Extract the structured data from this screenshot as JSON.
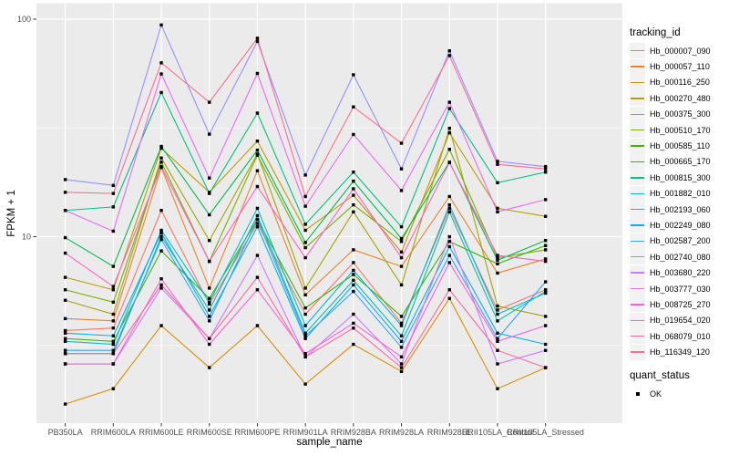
{
  "figure": {
    "background": "#FFFFFF",
    "panel_background": "#EBEBEB",
    "grid_color": "#FFFFFF",
    "axis_text_color": "#4D4D4D",
    "tick_color": "#333333",
    "legend_key_background": "#F2F2F2"
  },
  "chart_data": {
    "type": "line",
    "title": "",
    "xlabel": "sample_name",
    "ylabel": "FPKM + 1",
    "yscale": "log10",
    "ylim": [
      1.38,
      116
    ],
    "yticks": [
      10,
      100
    ],
    "ytick_labels": [
      "10",
      "100"
    ],
    "minor_gridlines": [
      3.162,
      31.62
    ],
    "grid": true,
    "legend_position": "right",
    "legend_title": "tracking_id",
    "legend2_title": "quant_status",
    "legend2_items": [
      "OK"
    ],
    "marker": "square",
    "marker_color": "#000000",
    "categories": [
      "PB350LA",
      "RRIM600LA",
      "RRIM600LE",
      "RRIM600SE",
      "RRIM600PE",
      "RRIM901LA",
      "RRIM928BA",
      "RRIM928LA",
      "RRIM928LE",
      "RRII105LA_Control",
      "RRII105LA_Stressed"
    ],
    "series": [
      {
        "name": "Hb_000007_090",
        "color": "#F8766D",
        "values": [
          3.7,
          3.8,
          13.2,
          4.9,
          11.5,
          4.4,
          7.6,
          4.0,
          13.5,
          4.6,
          5.7
        ]
      },
      {
        "name": "Hb_000057_110",
        "color": "#EA8331",
        "values": [
          4.2,
          4.1,
          20.8,
          5.8,
          20.1,
          5.4,
          8.7,
          7.3,
          15.3,
          6.8,
          7.9
        ]
      },
      {
        "name": "Hb_000116_250",
        "color": "#D89000",
        "values": [
          1.7,
          2.0,
          3.9,
          2.5,
          3.9,
          2.1,
          3.2,
          2.4,
          5.2,
          2.0,
          2.5
        ]
      },
      {
        "name": "Hb_000270_480",
        "color": "#C09B00",
        "values": [
          6.5,
          5.7,
          25.5,
          16.0,
          27.5,
          10.7,
          15.5,
          8.5,
          30.0,
          13.5,
          12.4
        ]
      },
      {
        "name": "Hb_000375_300",
        "color": "#A3A500",
        "values": [
          5.1,
          4.4,
          23.0,
          9.6,
          24.0,
          5.8,
          13.0,
          6.0,
          31.5,
          4.8,
          4.3
        ]
      },
      {
        "name": "Hb_000510_170",
        "color": "#7CAE00",
        "values": [
          5.7,
          5.0,
          22.0,
          7.7,
          23.7,
          8.9,
          14.0,
          9.5,
          25.2,
          8.0,
          8.7
        ]
      },
      {
        "name": "Hb_000585_110",
        "color": "#39B600",
        "values": [
          3.4,
          3.3,
          8.6,
          5.2,
          12.0,
          4.7,
          6.7,
          4.3,
          9.5,
          7.5,
          9.1
        ]
      },
      {
        "name": "Hb_000665_170",
        "color": "#00BB4E",
        "values": [
          9.9,
          7.3,
          26.0,
          12.6,
          25.0,
          9.4,
          18.0,
          9.8,
          22.0,
          7.8,
          9.6
        ]
      },
      {
        "name": "Hb_000815_300",
        "color": "#00C087",
        "values": [
          13.2,
          13.7,
          46.0,
          15.8,
          37.0,
          11.4,
          19.8,
          11.1,
          38.8,
          17.7,
          19.8
        ]
      },
      {
        "name": "Hb_001882_010",
        "color": "#00C0B2",
        "values": [
          2.9,
          2.9,
          10.0,
          4.6,
          12.5,
          3.6,
          6.3,
          3.5,
          13.0,
          4.1,
          5.6
        ]
      },
      {
        "name": "Hb_002193_060",
        "color": "#00BCD8",
        "values": [
          3.3,
          3.2,
          10.7,
          5.0,
          13.5,
          3.9,
          7.0,
          3.9,
          14.0,
          4.4,
          5.5
        ]
      },
      {
        "name": "Hb_002249_080",
        "color": "#00B0F6",
        "values": [
          3.6,
          3.5,
          10.4,
          4.3,
          11.1,
          3.4,
          6.0,
          3.3,
          9.0,
          3.6,
          3.2
        ]
      },
      {
        "name": "Hb_002587_200",
        "color": "#35A2FF",
        "values": [
          3.0,
          3.0,
          9.7,
          4.1,
          12.0,
          3.5,
          5.6,
          3.1,
          8.2,
          3.4,
          6.2
        ]
      },
      {
        "name": "Hb_002740_080",
        "color": "#9590FF",
        "values": [
          18.3,
          17.2,
          94.0,
          29.6,
          79.0,
          19.2,
          55.5,
          20.5,
          71.5,
          22.2,
          21.0
        ]
      },
      {
        "name": "Hb_003680_220",
        "color": "#C77CFF",
        "values": [
          2.6,
          2.6,
          5.8,
          3.4,
          8.2,
          2.8,
          4.4,
          2.6,
          10.0,
          2.6,
          3.0
        ]
      },
      {
        "name": "Hb_003777_030",
        "color": "#E76BF3",
        "values": [
          13.2,
          10.6,
          56.0,
          18.6,
          56.3,
          13.8,
          29.5,
          16.3,
          41.5,
          13.0,
          14.8
        ]
      },
      {
        "name": "Hb_008725_270",
        "color": "#FA62DB",
        "values": [
          2.6,
          2.6,
          6.4,
          3.2,
          5.7,
          2.9,
          4.0,
          2.8,
          7.6,
          3.3,
          3.9
        ]
      },
      {
        "name": "Hb_019654_020",
        "color": "#FF61C9",
        "values": [
          8.4,
          5.9,
          21.0,
          7.7,
          17.0,
          8.0,
          16.6,
          8.0,
          21.9,
          8.2,
          7.7
        ]
      },
      {
        "name": "Hb_068079_010",
        "color": "#FF67A4",
        "values": [
          2.9,
          2.9,
          6.0,
          3.4,
          6.5,
          2.8,
          3.8,
          2.5,
          5.7,
          3.0,
          2.5
        ]
      },
      {
        "name": "Hb_116349_120",
        "color": "#FF6C90",
        "values": [
          16.0,
          15.8,
          63.0,
          41.5,
          81.7,
          15.3,
          39.5,
          26.9,
          68.0,
          21.5,
          20.5
        ]
      }
    ]
  }
}
